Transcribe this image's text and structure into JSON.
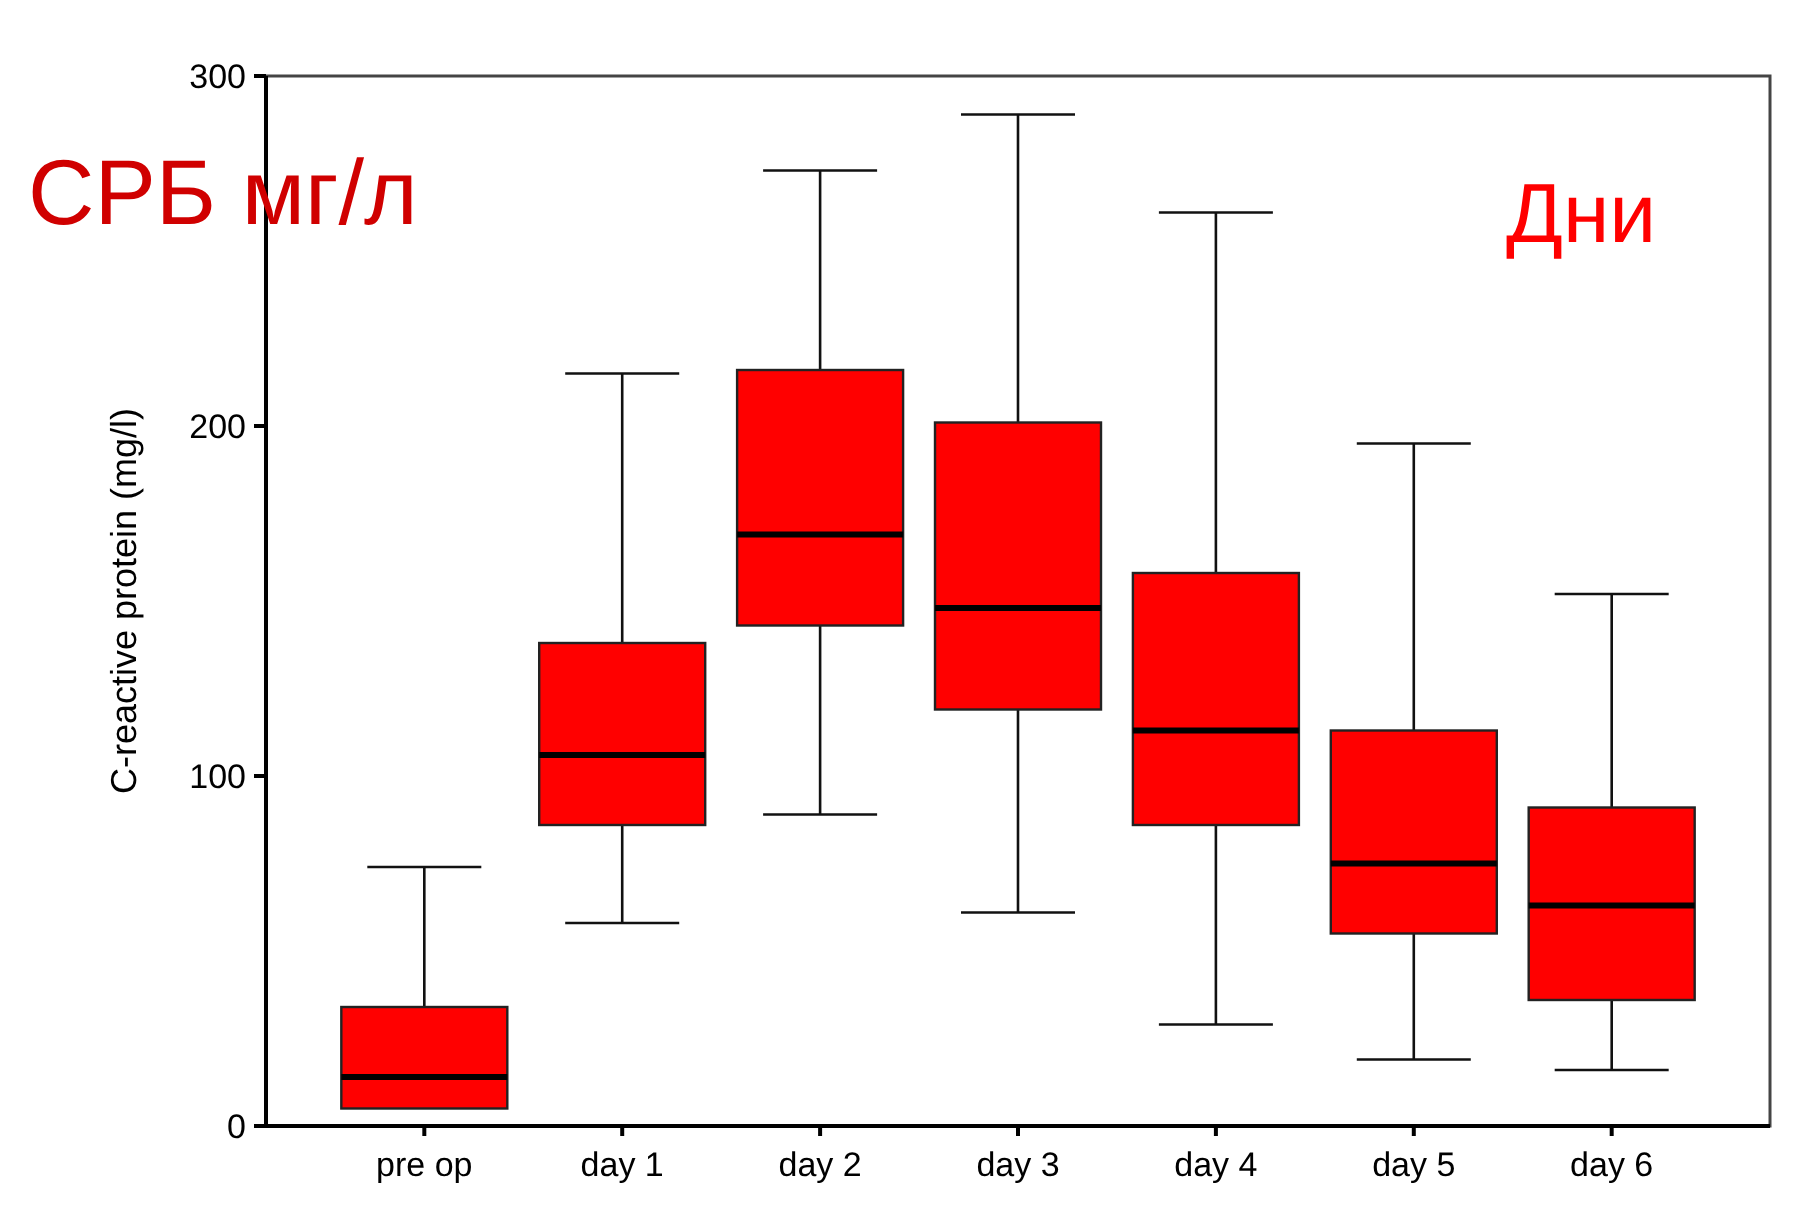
{
  "chart_data": {
    "type": "box",
    "ylabel": "C-reactive protein (mg/l)",
    "annotations": [
      "СРБ мг/л",
      "Дни"
    ],
    "categories": [
      "pre op",
      "day 1",
      "day 2",
      "day 3",
      "day 4",
      "day 5",
      "day 6"
    ],
    "color": "#ff0000",
    "boxes": [
      {
        "low": 5,
        "q1": 5,
        "median": 14,
        "q3": 34,
        "high": 74
      },
      {
        "low": 58,
        "q1": 86,
        "median": 106,
        "q3": 138,
        "high": 215
      },
      {
        "low": 89,
        "q1": 143,
        "median": 169,
        "q3": 216,
        "high": 273
      },
      {
        "low": 61,
        "q1": 119,
        "median": 148,
        "q3": 201,
        "high": 289
      },
      {
        "low": 29,
        "q1": 86,
        "median": 113,
        "q3": 158,
        "high": 261
      },
      {
        "low": 19,
        "q1": 55,
        "median": 75,
        "q3": 113,
        "high": 195
      },
      {
        "low": 16,
        "q1": 36,
        "median": 63,
        "q3": 91,
        "high": 152
      }
    ],
    "ylim": [
      0,
      300
    ],
    "yticks": [
      0,
      100,
      200,
      300
    ]
  }
}
